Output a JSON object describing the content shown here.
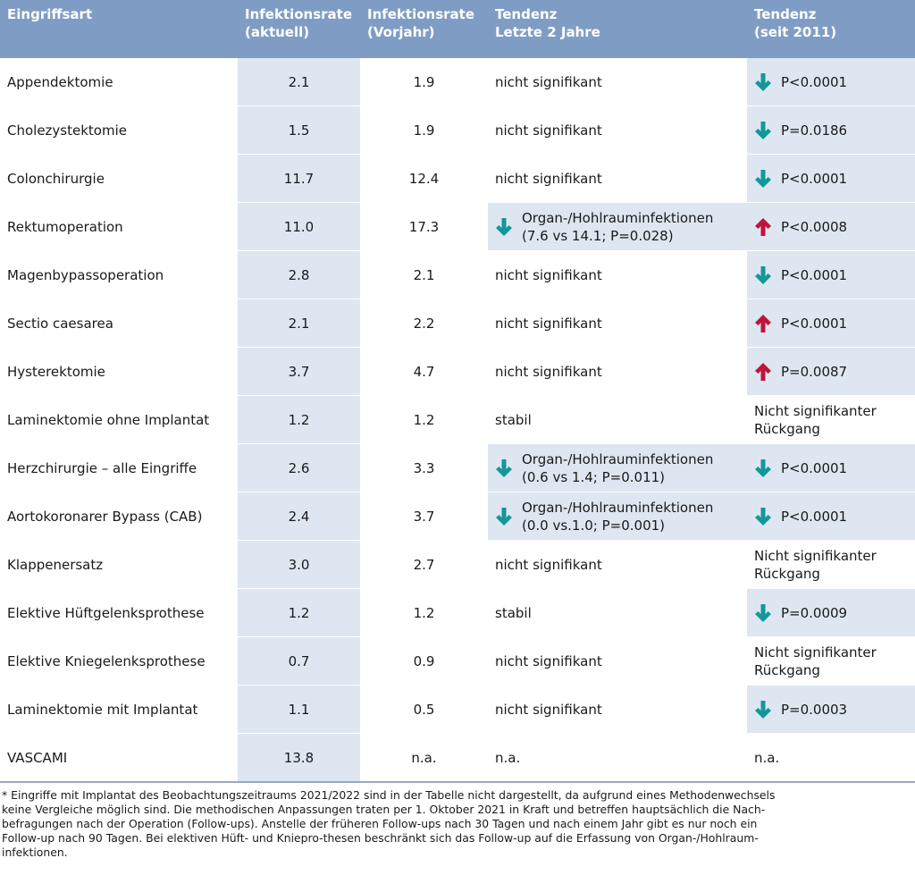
{
  "table": {
    "header": [
      "Eingriffsart",
      "Infektionsrate\n(aktuell)",
      "Infektionsrate\n(Vorjahr)",
      "Tendenz\nLetzte 2 Jahre",
      "Tendenz\n(seit 2011)"
    ],
    "arrow_colors": {
      "down": "#13979a",
      "up": "#c0143c"
    },
    "rows": [
      [
        "Appendektomie",
        "2.1",
        "1.9",
        {
          "text": "nicht signifikant"
        },
        {
          "text": "P<0.0001",
          "arrow": "down"
        }
      ],
      [
        "Cholezystektomie",
        "1.5",
        "1.9",
        {
          "text": "nicht signifikant"
        },
        {
          "text": "P=0.0186",
          "arrow": "down"
        }
      ],
      [
        "Colonchirurgie",
        "11.7",
        "12.4",
        {
          "text": "nicht signifikant"
        },
        {
          "text": "P<0.0001",
          "arrow": "down"
        }
      ],
      [
        "Rektumoperation",
        "11.0",
        "17.3",
        {
          "text": "Organ-/Hohlrauminfektionen\n(7.6 vs 14.1; P=0.028)",
          "arrow": "down"
        },
        {
          "text": "P<0.0008",
          "arrow": "up"
        }
      ],
      [
        "Magenbypassoperation",
        "2.8",
        "2.1",
        {
          "text": "nicht signifikant"
        },
        {
          "text": "P<0.0001",
          "arrow": "down"
        }
      ],
      [
        "Sectio caesarea",
        "2.1",
        "2.2",
        {
          "text": "nicht signifikant"
        },
        {
          "text": "P<0.0001",
          "arrow": "up"
        }
      ],
      [
        "Hysterektomie",
        "3.7",
        "4.7",
        {
          "text": "nicht signifikant"
        },
        {
          "text": "P=0.0087",
          "arrow": "up"
        }
      ],
      [
        "Laminektomie ohne Implantat",
        "1.2",
        "1.2",
        {
          "text": "stabil"
        },
        {
          "text": "Nicht signifikanter\nRückgang"
        }
      ],
      [
        "Herzchirurgie – alle Eingriffe",
        "2.6",
        "3.3",
        {
          "text": "Organ-/Hohlrauminfektionen\n(0.6 vs 1.4; P=0.011)",
          "arrow": "down"
        },
        {
          "text": "P<0.0001",
          "arrow": "down"
        }
      ],
      [
        "Aortokoronarer Bypass (CAB)",
        "2.4",
        "3.7",
        {
          "text": "Organ-/Hohlrauminfektionen\n(0.0 vs.1.0; P=0.001)",
          "arrow": "down"
        },
        {
          "text": "P<0.0001",
          "arrow": "down"
        }
      ],
      [
        "Klappenersatz",
        "3.0",
        "2.7",
        {
          "text": "nicht signifikant"
        },
        {
          "text": "Nicht signifikanter\nRückgang"
        }
      ],
      [
        "Elektive Hüftgelenksprothese",
        "1.2",
        "1.2",
        {
          "text": "stabil"
        },
        {
          "text": "P=0.0009",
          "arrow": "down"
        }
      ],
      [
        "Elektive Kniegelenksprothese",
        "0.7",
        "0.9",
        {
          "text": "nicht signifikant"
        },
        {
          "text": "Nicht signifikanter\nRückgang"
        }
      ],
      [
        "Laminektomie mit Implantat",
        "1.1",
        "0.5",
        {
          "text": "nicht signifikant"
        },
        {
          "text": "P=0.0003",
          "arrow": "down"
        }
      ],
      [
        "VASCAMI",
        "13.8",
        "n.a.",
        {
          "text": "n.a."
        },
        {
          "text": "n.a."
        }
      ]
    ]
  },
  "footnote": "* Eingriffe mit Implantat des Beobachtungszeitraums 2021/2022 sind in der Tabelle nicht dargestellt, da aufgrund eines Methodenwechsels\nkeine Vergleiche möglich sind. Die methodischen Anpassungen traten per 1. Oktober 2021 in Kraft und betreffen hauptsächlich die Nach-\nbefragungen nach der Operation (Follow-ups). Anstelle der früheren Follow-ups nach 30 Tagen und nach einem Jahr gibt es nur noch ein\nFollow-up nach 90 Tagen. Bei elektiven Hüft- und Kniepro-thesen beschränkt sich das Follow-up auf die Erfassung von Organ-/Hohlraum-\ninfektionen."
}
